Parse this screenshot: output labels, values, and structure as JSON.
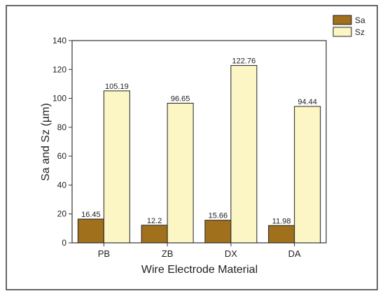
{
  "chart_data": {
    "type": "bar",
    "title": "",
    "xlabel": "Wire Electrode Material",
    "ylabel": "Sa and Sz (µm)",
    "categories": [
      "PB",
      "ZB",
      "DX",
      "DA"
    ],
    "ylim": [
      0,
      140
    ],
    "yticks": [
      0,
      20,
      40,
      60,
      80,
      100,
      120,
      140
    ],
    "grid": false,
    "legend_position": "top-right",
    "series": [
      {
        "name": "Sa",
        "values": [
          16.45,
          12.2,
          15.66,
          11.98
        ],
        "labels": [
          "16.45",
          "12.2",
          "15.66",
          "11.98"
        ],
        "color": "#a0701c"
      },
      {
        "name": "Sz",
        "values": [
          105.19,
          96.65,
          122.76,
          94.44
        ],
        "labels": [
          "105.19",
          "96.65",
          "122.76",
          "94.44"
        ],
        "color": "#fbf6c4"
      }
    ]
  }
}
